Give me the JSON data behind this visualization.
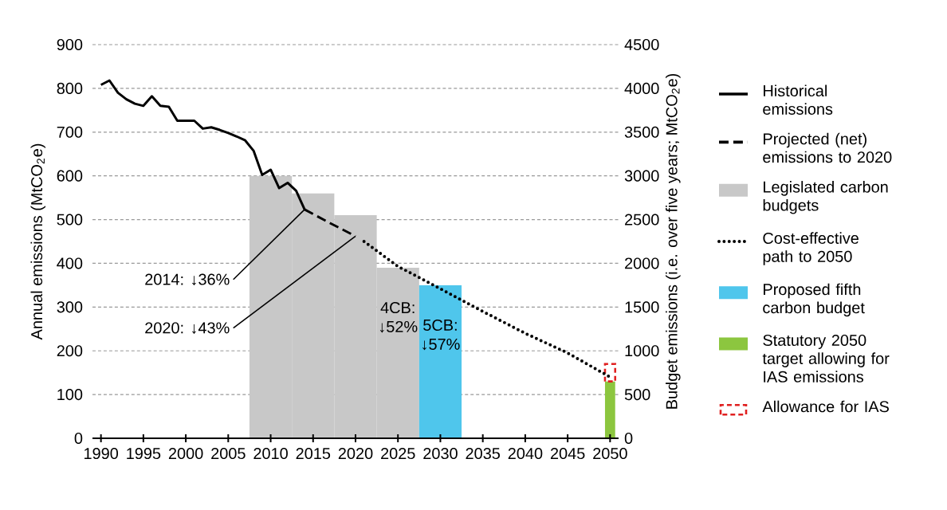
{
  "chart_data": {
    "type": "line",
    "ylabel": "Annual emissions (MtCO$_{2}$e)",
    "y2label": "Budget emissions (i.e. over five years; MtCO$_{2}$e)",
    "xlim": [
      1989,
      2051
    ],
    "xticks": [
      1990,
      1995,
      2000,
      2005,
      2010,
      2015,
      2020,
      2025,
      2030,
      2035,
      2040,
      2045,
      2050
    ],
    "ylim": [
      0,
      900
    ],
    "yticks": [
      0,
      100,
      200,
      300,
      400,
      500,
      600,
      700,
      800,
      900
    ],
    "y2lim": [
      0,
      4500
    ],
    "y2ticks": [
      0,
      500,
      1000,
      1500,
      2000,
      2500,
      3000,
      3500,
      4000,
      4500
    ],
    "grid": "y",
    "legend": "right",
    "series": [
      {
        "name": "Historical emissions",
        "line_style": "solid",
        "color": "#000000",
        "x": [
          1990,
          1991,
          1992,
          1993,
          1994,
          1995,
          1996,
          1997,
          1998,
          1999,
          2000,
          2001,
          2002,
          2003,
          2004,
          2005,
          2006,
          2007,
          2008,
          2009,
          2010,
          2011,
          2012,
          2013,
          2014
        ],
        "values": [
          808,
          818,
          790,
          775,
          765,
          760,
          782,
          760,
          758,
          726,
          726,
          726,
          708,
          711,
          705,
          698,
          690,
          681,
          657,
          602,
          614,
          572,
          584,
          566,
          523
        ]
      },
      {
        "name": "Projected (net) emissions to 2020",
        "line_style": "dashed",
        "color": "#000000",
        "x": [
          2014,
          2017,
          2020
        ],
        "values": [
          523,
          492,
          462
        ]
      },
      {
        "name": "Legislated carbon budgets",
        "type": "bar",
        "axis": "y2",
        "color": "#c8c8c8",
        "x": [
          2010,
          2015,
          2020,
          2025
        ],
        "values": [
          3000,
          2800,
          2550,
          1950
        ]
      },
      {
        "name": "Cost-effective path to 2050",
        "line_style": "dotted",
        "color": "#000000",
        "x": [
          2021,
          2025,
          2030,
          2035,
          2040,
          2045,
          2050
        ],
        "values": [
          450,
          393,
          342,
          290,
          240,
          195,
          140
        ]
      },
      {
        "name": "Proposed fifth carbon budget",
        "type": "bar",
        "axis": "y2",
        "color": "#4fc6ec",
        "x": [
          2030
        ],
        "values": [
          1750
        ]
      },
      {
        "name": "Statutory 2050 target allowing for IAS emissions",
        "type": "bar",
        "axis": "y2",
        "color": "#8cc63f",
        "x": [
          2050
        ],
        "values": [
          650
        ]
      },
      {
        "name": "Allowance for IAS",
        "type": "bar",
        "axis": "y2",
        "color": "#e02020",
        "line_style": "dashed",
        "x": [
          2050
        ],
        "base": [
          650
        ],
        "values": [
          200
        ]
      }
    ],
    "annotations": [
      {
        "text": "2014: ↓36%",
        "x": 2014,
        "y": 523
      },
      {
        "text": "2020: ↓43%",
        "x": 2020,
        "y": 462
      },
      {
        "text": "4CB: ↓52%",
        "x": 2025,
        "y": 390
      },
      {
        "text": "5CB: ↓57%",
        "x": 2030,
        "y": 350
      }
    ]
  }
}
